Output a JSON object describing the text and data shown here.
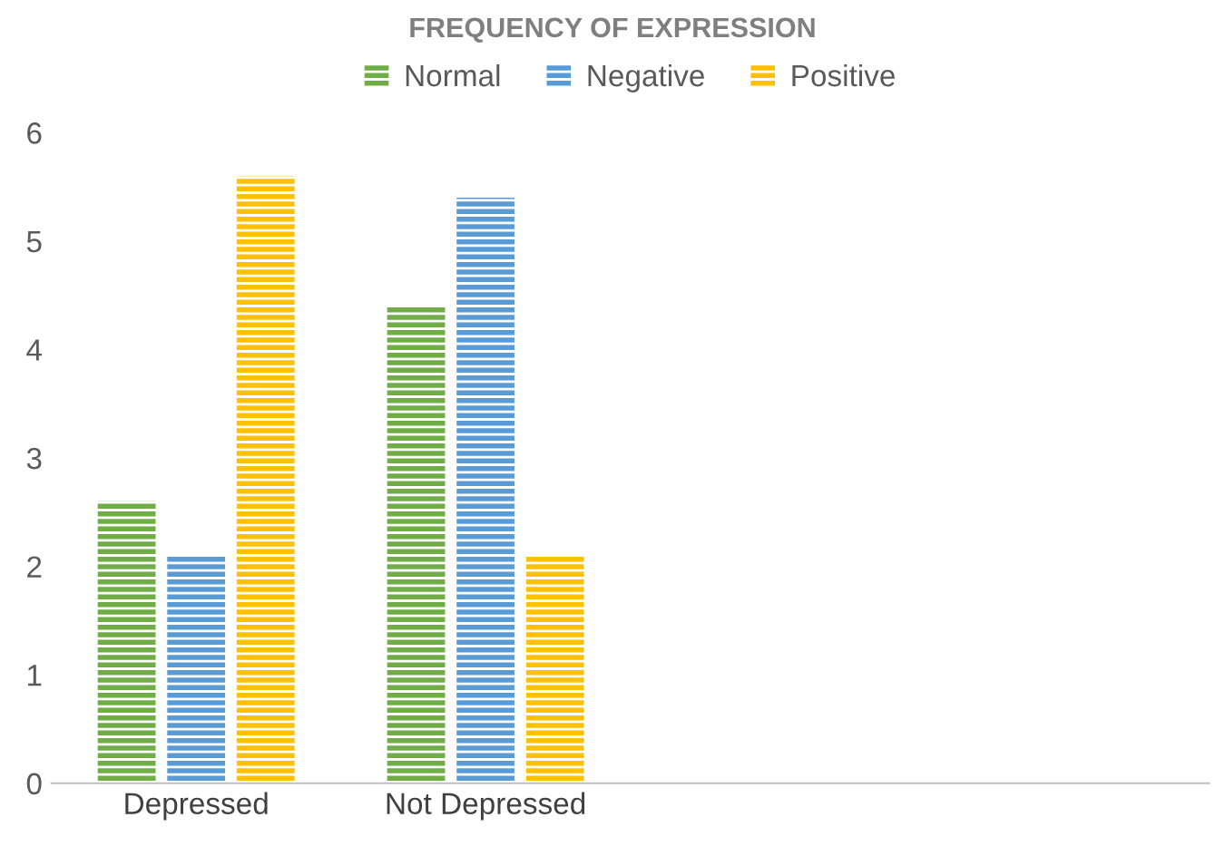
{
  "chart_data": {
    "type": "bar",
    "title": "FREQUENCY OF EXPRESSION",
    "categories": [
      "Depressed",
      "Not Depressed",
      null,
      null
    ],
    "series": [
      {
        "name": "Normal",
        "color": "#70ad47",
        "values": [
          2.6,
          4.4,
          null,
          null
        ]
      },
      {
        "name": "Negative",
        "color": "#5b9bd5",
        "values": [
          2.1,
          5.4,
          null,
          null
        ]
      },
      {
        "name": "Positive",
        "color": "#ffc000",
        "values": [
          5.6,
          2.1,
          null,
          null
        ]
      }
    ],
    "ylim": [
      0,
      6
    ],
    "yticks": [
      0,
      1,
      2,
      3,
      4,
      5,
      6
    ],
    "grid": false,
    "legend": "top"
  }
}
